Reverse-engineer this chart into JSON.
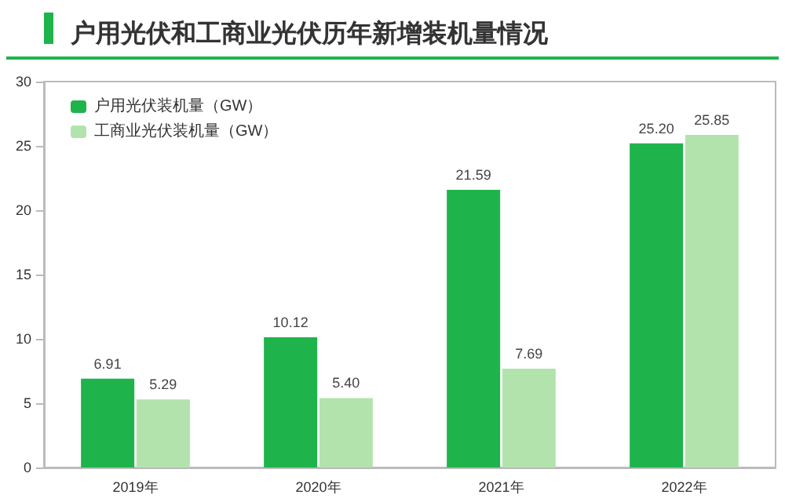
{
  "chart_data": {
    "type": "bar",
    "title": "户用光伏和工商业光伏历年新增装机量情况",
    "categories": [
      "2019年",
      "2020年",
      "2021年",
      "2022年"
    ],
    "series": [
      {
        "name": "户用光伏装机量（GW）",
        "color": "#1fb44b",
        "values": [
          6.91,
          10.12,
          21.59,
          25.2
        ],
        "value_labels": [
          "6.91",
          "10.12",
          "21.59",
          "25.20"
        ]
      },
      {
        "name": "工商业光伏装机量（GW）",
        "color": "#b3e3ad",
        "values": [
          5.29,
          5.4,
          7.69,
          25.85
        ],
        "value_labels": [
          "5.29",
          "5.40",
          "7.69",
          "25.85"
        ]
      }
    ],
    "ylim": [
      0,
      30
    ],
    "yticks": [
      0,
      5,
      10,
      15,
      20,
      25,
      30
    ],
    "grid": false,
    "legend": "top left"
  }
}
